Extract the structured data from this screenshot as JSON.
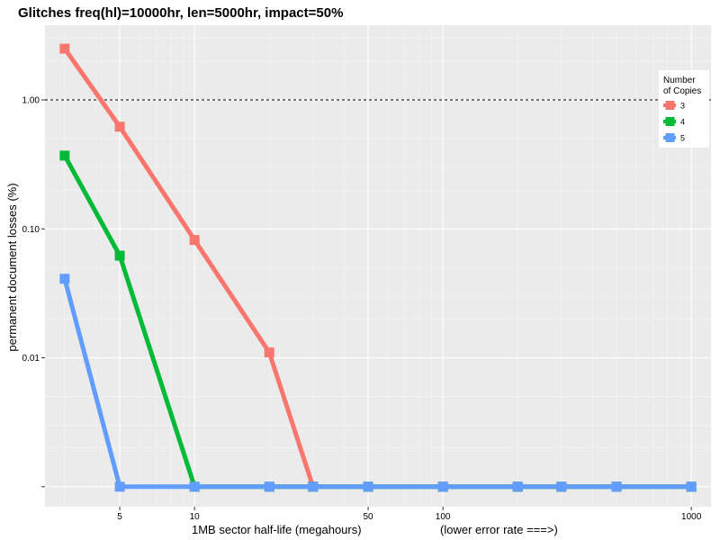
{
  "chart_data": {
    "type": "line",
    "title": "Glitches freq(hl)=10000hr, len=5000hr, impact=50%",
    "xlabel": "1MB sector half-life (megahours)",
    "xlabel_extra": "(lower error rate ===>)",
    "ylabel": "permanent document losses (%)",
    "x_scale": "log",
    "y_scale": "log",
    "xlim": [
      2.5,
      1200
    ],
    "ylim": [
      0.0007,
      3.8
    ],
    "x_ticks": [
      5,
      10,
      50,
      100,
      1000
    ],
    "x_tick_labels": [
      "5",
      "10",
      "50",
      "100",
      "1000"
    ],
    "y_ticks": [
      0.01,
      0.1,
      1
    ],
    "y_tick_labels": [
      "0.01",
      "0.10",
      "1.00"
    ],
    "y_extra_tick": 0.001,
    "reference_line": 1.0,
    "grid": true,
    "legend_position": "right-top",
    "legend_title_line1": "Number",
    "legend_title_line2": "of Copies",
    "series": [
      {
        "name": "3",
        "color": "#F8766D",
        "x": [
          3,
          5,
          10,
          20,
          30,
          50,
          100,
          200,
          300,
          500,
          1000
        ],
        "y": [
          2.5,
          0.62,
          0.082,
          0.011,
          0.001,
          0.001,
          0.001,
          0.001,
          0.001,
          0.001,
          0.001
        ]
      },
      {
        "name": "4",
        "color": "#00BA38",
        "x": [
          3,
          5,
          10,
          20,
          30,
          50,
          100,
          200,
          300,
          500,
          1000
        ],
        "y": [
          0.37,
          0.062,
          0.001,
          0.001,
          0.001,
          0.001,
          0.001,
          0.001,
          0.001,
          0.001,
          0.001
        ]
      },
      {
        "name": "5",
        "color": "#619CFF",
        "x": [
          3,
          5,
          10,
          20,
          30,
          50,
          100,
          200,
          300,
          500,
          1000
        ],
        "y": [
          0.041,
          0.001,
          0.001,
          0.001,
          0.001,
          0.001,
          0.001,
          0.001,
          0.001,
          0.001,
          0.001
        ]
      }
    ]
  }
}
